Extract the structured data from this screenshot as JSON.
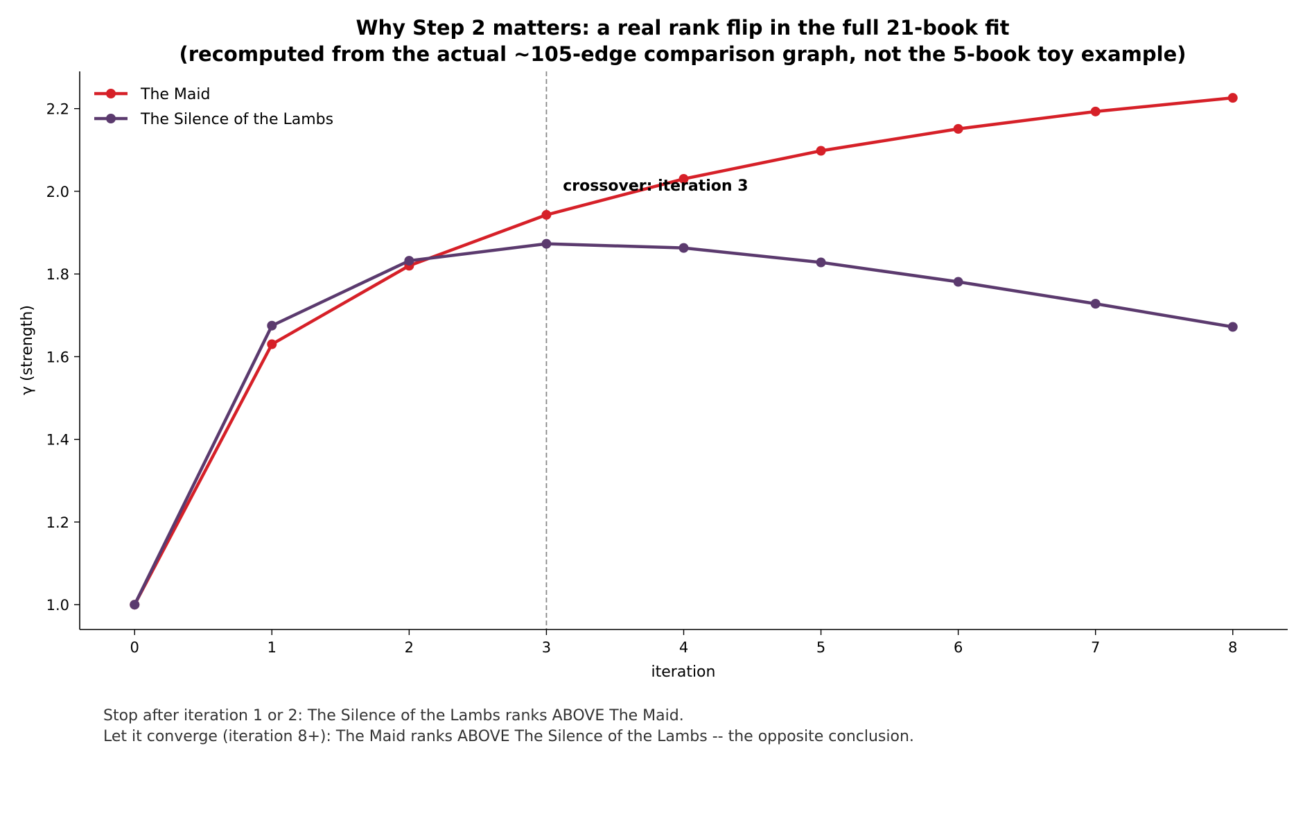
{
  "chart_data": {
    "type": "line",
    "title_line1": "Why Step 2 matters: a real rank flip in the full 21-book fit",
    "title_line2": "(recomputed from the actual ~105-edge comparison graph, not the 5-book toy example)",
    "xlabel": "iteration",
    "ylabel": "γ (strength)",
    "x": [
      0,
      1,
      2,
      3,
      4,
      5,
      6,
      7,
      8
    ],
    "xlim": [
      -0.4,
      8.4
    ],
    "ylim": [
      0.94,
      2.29
    ],
    "yticks": [
      1.0,
      1.2,
      1.4,
      1.6,
      1.8,
      2.0,
      2.2
    ],
    "ytick_labels": [
      "1.0",
      "1.2",
      "1.4",
      "1.6",
      "1.8",
      "2.0",
      "2.2"
    ],
    "xtick_labels": [
      "0",
      "1",
      "2",
      "3",
      "4",
      "5",
      "6",
      "7",
      "8"
    ],
    "series": [
      {
        "name": "The Maid",
        "color": "#d62028",
        "values": [
          1.0,
          1.63,
          1.82,
          1.943,
          2.03,
          2.098,
          2.151,
          2.193,
          2.226
        ]
      },
      {
        "name": "The Silence of the Lambs",
        "color": "#5b3a6e",
        "values": [
          1.0,
          1.675,
          1.832,
          1.873,
          1.863,
          1.828,
          1.781,
          1.728,
          1.672
        ]
      }
    ],
    "vline": {
      "x": 3,
      "color": "#888888"
    },
    "annotation": {
      "text": "crossover: iteration 3",
      "x": 3.12,
      "y": 2.015
    },
    "legend_position": "upper-left",
    "grid": false,
    "footnote_line1": "Stop after iteration 1 or 2: The Silence of the Lambs ranks ABOVE The Maid.",
    "footnote_line2": "Let it converge (iteration 8+): The Maid ranks ABOVE The Silence of the Lambs -- the opposite conclusion."
  }
}
